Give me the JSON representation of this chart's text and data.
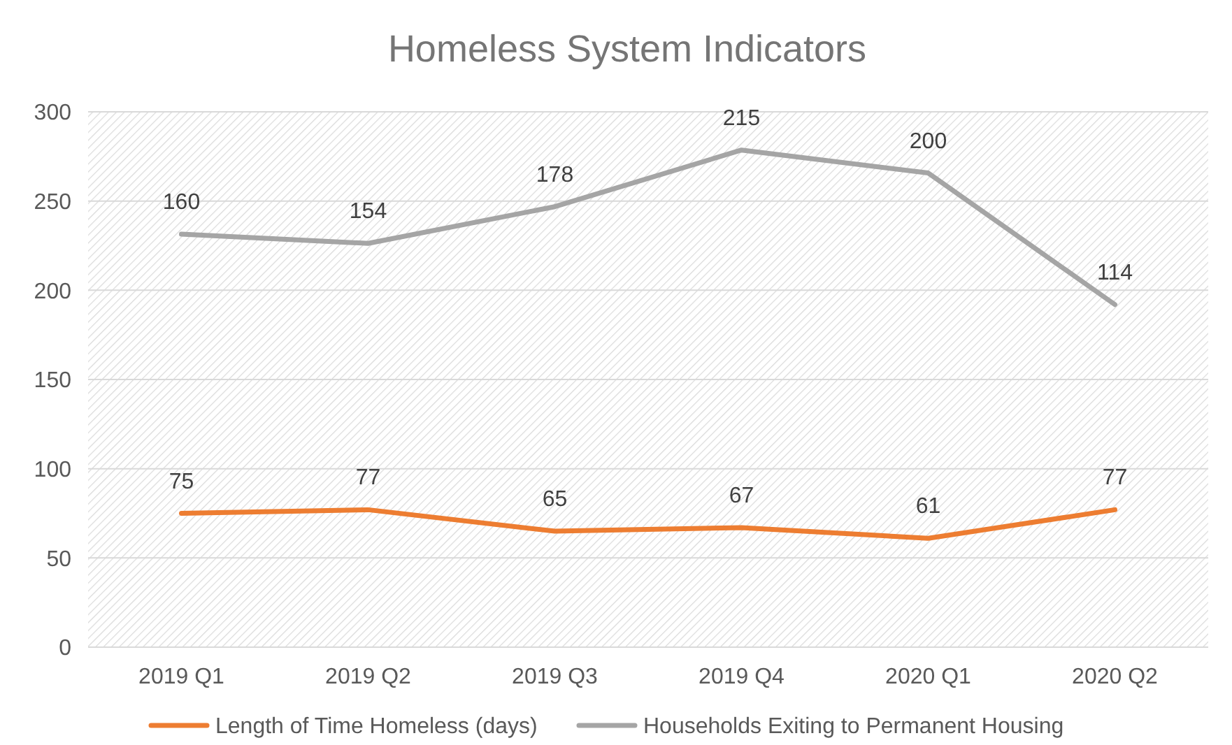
{
  "chart_data": {
    "type": "line",
    "title": "Homeless System Indicators",
    "categories": [
      "2019 Q1",
      "2019 Q2",
      "2019 Q3",
      "2019 Q4",
      "2020 Q1",
      "2020 Q2"
    ],
    "series": [
      {
        "name": "Length of Time Homeless (days)",
        "color": "#ed7d31",
        "values": [
          75,
          77,
          65,
          67,
          61,
          77
        ]
      },
      {
        "name": "Households Exiting to Permanent Housing",
        "color": "#a5a5a5",
        "values": [
          160,
          154,
          178,
          215,
          200,
          114
        ],
        "axis": "y2"
      }
    ],
    "ylim": [
      0,
      300
    ],
    "yticks": [
      0,
      50,
      100,
      150,
      200,
      250,
      300
    ],
    "y2lim": [
      -110,
      240
    ],
    "grid": "y",
    "legend": "bottom",
    "data_labels": true,
    "marker": "none",
    "line_style": "solid"
  }
}
